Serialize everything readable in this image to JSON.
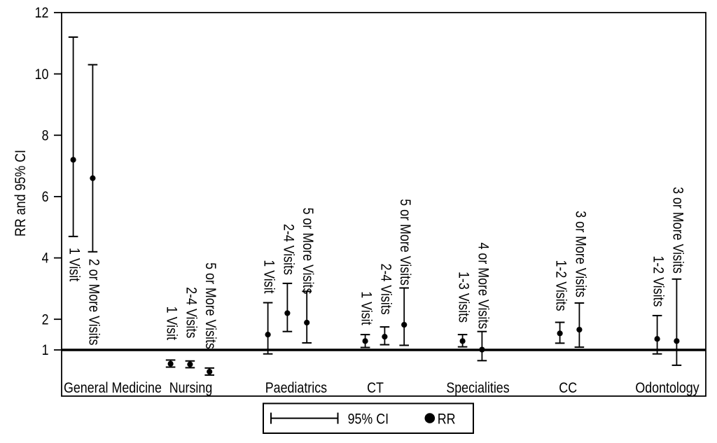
{
  "figure": {
    "background": "#ffffff",
    "ink_color": "#000000"
  },
  "chart_data": {
    "type": "errorbar",
    "title": "",
    "ylabel": "RR and 95% CI",
    "xlabel": "",
    "yticks": [
      12,
      10,
      8,
      6,
      4,
      2,
      1
    ],
    "ylim": [
      0,
      12
    ],
    "grid": false,
    "reference_line_value": 1,
    "legend": {
      "position": "bottom-center",
      "ci_label": "95% CI",
      "rr_label": "RR"
    },
    "groups": [
      {
        "name": "General Medicine",
        "item_label_side": "below",
        "items": [
          {
            "label": "1 Visit",
            "rr": 7.2,
            "ci_low": 4.7,
            "ci_high": 11.2
          },
          {
            "label": "2 or More Visits",
            "rr": 6.6,
            "ci_low": 4.2,
            "ci_high": 10.3
          }
        ]
      },
      {
        "name": "Nursing",
        "item_label_side": "above",
        "items": [
          {
            "label": "1 Visit",
            "rr": 0.55,
            "ci_low": 0.44,
            "ci_high": 0.67
          },
          {
            "label": "2-4 Visits",
            "rr": 0.53,
            "ci_low": 0.42,
            "ci_high": 0.64
          },
          {
            "label": "5 or More Visits",
            "rr": 0.29,
            "ci_low": 0.18,
            "ci_high": 0.41
          }
        ]
      },
      {
        "name": "Paediatrics",
        "item_label_side": "above",
        "items": [
          {
            "label": "1 Visit",
            "rr": 1.5,
            "ci_low": 0.87,
            "ci_high": 2.54
          },
          {
            "label": "2-4 Visits",
            "rr": 2.2,
            "ci_low": 1.6,
            "ci_high": 3.17
          },
          {
            "label": "5 or More Visits",
            "rr": 1.89,
            "ci_low": 1.23,
            "ci_high": 2.91
          }
        ]
      },
      {
        "name": "CT",
        "item_label_side": "above",
        "items": [
          {
            "label": "1 Visit",
            "rr": 1.29,
            "ci_low": 1.08,
            "ci_high": 1.5
          },
          {
            "label": "2-4 Visits",
            "rr": 1.43,
            "ci_low": 1.17,
            "ci_high": 1.75
          },
          {
            "label": "5 or More Visits",
            "rr": 1.82,
            "ci_low": 1.15,
            "ci_high": 3.02
          }
        ]
      },
      {
        "name": "Specialities",
        "item_label_side": "above",
        "items": [
          {
            "label": "1-3 Visits",
            "rr": 1.29,
            "ci_low": 1.1,
            "ci_high": 1.5
          },
          {
            "label": "4 or More Visits",
            "rr": 1.01,
            "ci_low": 0.65,
            "ci_high": 1.6
          }
        ]
      },
      {
        "name": "CC",
        "item_label_side": "above",
        "items": [
          {
            "label": "1-2 Visits",
            "rr": 1.54,
            "ci_low": 1.22,
            "ci_high": 1.9
          },
          {
            "label": "3 or More Visits",
            "rr": 1.66,
            "ci_low": 1.09,
            "ci_high": 2.53
          }
        ]
      },
      {
        "name": "Odontology",
        "item_label_side": "above",
        "items": [
          {
            "label": "1-2 Visits",
            "rr": 1.36,
            "ci_low": 0.87,
            "ci_high": 2.12
          },
          {
            "label": "3 or More Visits",
            "rr": 1.29,
            "ci_low": 0.5,
            "ci_high": 3.31
          }
        ]
      }
    ]
  }
}
